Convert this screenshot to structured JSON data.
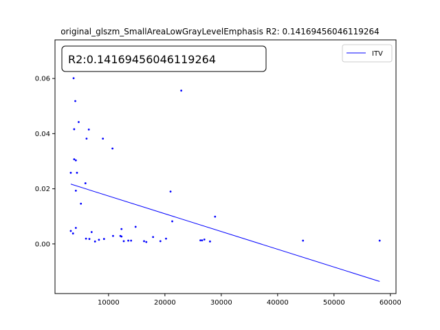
{
  "chart_data": {
    "type": "scatter",
    "title": "original_glszm_SmallAreaLowGrayLevelEmphasis R2: 0.14169456046119264",
    "annotation": "R2:0.14169456046119264",
    "xlabel": "",
    "ylabel": "",
    "xlim": [
      500,
      61000
    ],
    "ylim": [
      -0.018,
      0.074
    ],
    "xticks": [
      10000,
      20000,
      30000,
      40000,
      50000,
      60000
    ],
    "xtick_labels": [
      "10000",
      "20000",
      "30000",
      "40000",
      "50000",
      "60000"
    ],
    "yticks": [
      0.0,
      0.02,
      0.04,
      0.06
    ],
    "ytick_labels": [
      "0.00",
      "0.02",
      "0.04",
      "0.06"
    ],
    "grid": false,
    "legend": {
      "position": "top-right",
      "entries": [
        "ITV"
      ]
    },
    "color": "#0000ff",
    "points": [
      {
        "x": 3300,
        "y": 0.0258
      },
      {
        "x": 3300,
        "y": 0.0047
      },
      {
        "x": 3700,
        "y": 0.0038
      },
      {
        "x": 3800,
        "y": 0.0601
      },
      {
        "x": 3900,
        "y": 0.0416
      },
      {
        "x": 3900,
        "y": 0.0307
      },
      {
        "x": 4100,
        "y": 0.0518
      },
      {
        "x": 4200,
        "y": 0.0303
      },
      {
        "x": 4200,
        "y": 0.0193
      },
      {
        "x": 4200,
        "y": 0.0058
      },
      {
        "x": 4400,
        "y": 0.0258
      },
      {
        "x": 4700,
        "y": 0.0442
      },
      {
        "x": 5100,
        "y": 0.0146
      },
      {
        "x": 5900,
        "y": 0.022
      },
      {
        "x": 6000,
        "y": 0.0019
      },
      {
        "x": 6100,
        "y": 0.0382
      },
      {
        "x": 6500,
        "y": 0.0415
      },
      {
        "x": 6600,
        "y": 0.0018
      },
      {
        "x": 7000,
        "y": 0.0043
      },
      {
        "x": 7600,
        "y": 0.0009
      },
      {
        "x": 8300,
        "y": 0.0015
      },
      {
        "x": 9000,
        "y": 0.0382
      },
      {
        "x": 9200,
        "y": 0.0018
      },
      {
        "x": 10700,
        "y": 0.0346
      },
      {
        "x": 10800,
        "y": 0.0029
      },
      {
        "x": 12100,
        "y": 0.0029
      },
      {
        "x": 12300,
        "y": 0.0054
      },
      {
        "x": 12300,
        "y": 0.0027
      },
      {
        "x": 12700,
        "y": 0.001
      },
      {
        "x": 13500,
        "y": 0.0012
      },
      {
        "x": 14000,
        "y": 0.0012
      },
      {
        "x": 14800,
        "y": 0.0062
      },
      {
        "x": 16300,
        "y": 0.001
      },
      {
        "x": 16700,
        "y": 0.0007
      },
      {
        "x": 17900,
        "y": 0.0025
      },
      {
        "x": 19200,
        "y": 0.001
      },
      {
        "x": 20200,
        "y": 0.0019
      },
      {
        "x": 21000,
        "y": 0.019
      },
      {
        "x": 21300,
        "y": 0.0082
      },
      {
        "x": 22900,
        "y": 0.0556
      },
      {
        "x": 26300,
        "y": 0.0013
      },
      {
        "x": 26600,
        "y": 0.0013
      },
      {
        "x": 27000,
        "y": 0.0016
      },
      {
        "x": 28000,
        "y": 0.0009
      },
      {
        "x": 28900,
        "y": 0.0099
      },
      {
        "x": 44500,
        "y": 0.0012
      },
      {
        "x": 58100,
        "y": 0.0012
      }
    ],
    "fit_line": {
      "name": "ITV",
      "x": [
        3300,
        58100
      ],
      "y": [
        0.0217,
        -0.0136
      ]
    }
  }
}
